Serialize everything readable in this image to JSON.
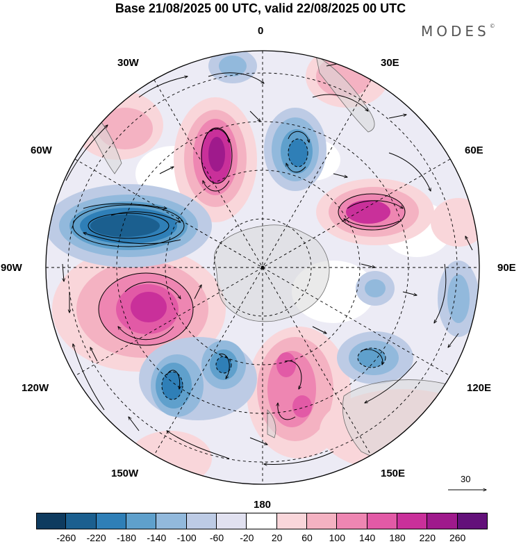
{
  "title": "Base 21/08/2025 00 UTC, valid 22/08/2025 00 UTC",
  "brand": {
    "text": "MODES",
    "mark": "©"
  },
  "longitude_labels": {
    "deg0": "0",
    "deg30e": "30E",
    "deg60e": "60E",
    "deg90e": "90E",
    "deg120e": "120E",
    "deg150e": "150E",
    "deg180": "180",
    "deg150w": "150W",
    "deg120w": "120W",
    "deg90w": "90W",
    "deg60w": "60W",
    "deg30w": "30W"
  },
  "reference_vector": {
    "value": "30"
  },
  "colorbar": {
    "colors": [
      "#0e3b5f",
      "#1b5f8f",
      "#2f7fb7",
      "#5fa0cc",
      "#92b9dc",
      "#bdcbe5",
      "#e1e1f0",
      "#ffffff",
      "#f9d6da",
      "#f4b2c2",
      "#ee86b2",
      "#e25aa6",
      "#c9309a",
      "#9f1a8c",
      "#63117a"
    ],
    "ticks": [
      "-260",
      "-220",
      "-180",
      "-140",
      "-100",
      "-60",
      "-20",
      "20",
      "60",
      "100",
      "140",
      "180",
      "220",
      "260"
    ]
  }
}
